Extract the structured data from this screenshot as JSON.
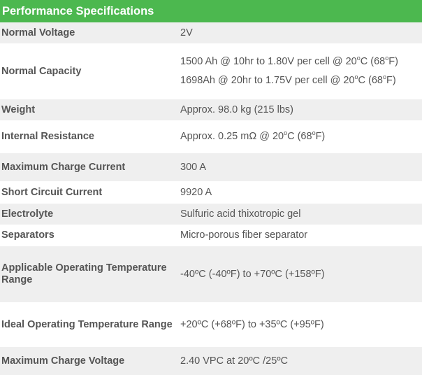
{
  "table": {
    "title": "Performance Specifications",
    "rows": [
      {
        "label": "Normal Voltage",
        "values": [
          "2V"
        ]
      },
      {
        "label": "Normal Capacity",
        "values": [
          "1500 Ah @ 10hr to 1.80V per cell @ 20°C (68°F)",
          "1698Ah @ 20hr to 1.75V per cell @ 20°C (68°F)"
        ]
      },
      {
        "label": "Weight",
        "values": [
          "Approx. 98.0 kg (215 lbs)"
        ]
      },
      {
        "label": "Internal Resistance",
        "values": [
          "Approx. 0.25 mΩ @ 20°C (68°F)"
        ]
      },
      {
        "label": "Maximum Charge Current",
        "values": [
          "300 A"
        ]
      },
      {
        "label": "Short Circuit Current",
        "values": [
          "9920 A"
        ]
      },
      {
        "label": "Electrolyte",
        "values": [
          "Sulfuric acid thixotropic gel"
        ]
      },
      {
        "label": "Separators",
        "values": [
          "Micro-porous fiber separator"
        ]
      },
      {
        "label": "Applicable Operating Temperature Range",
        "values": [
          "-40ºC (-40ºF) to +70ºC (+158ºF)"
        ]
      },
      {
        "label": "Ideal Operating Temperature Range",
        "values": [
          "+20ºC (+68ºF) to +35ºC (+95ºF)"
        ]
      },
      {
        "label": "Maximum Charge Voltage",
        "values": [
          "2.40 VPC at 20ºC /25ºC"
        ]
      }
    ]
  },
  "colors": {
    "header_bg": "#4cb84f",
    "header_text": "#ffffff",
    "row_shade": "#efefef",
    "text": "#555555"
  }
}
